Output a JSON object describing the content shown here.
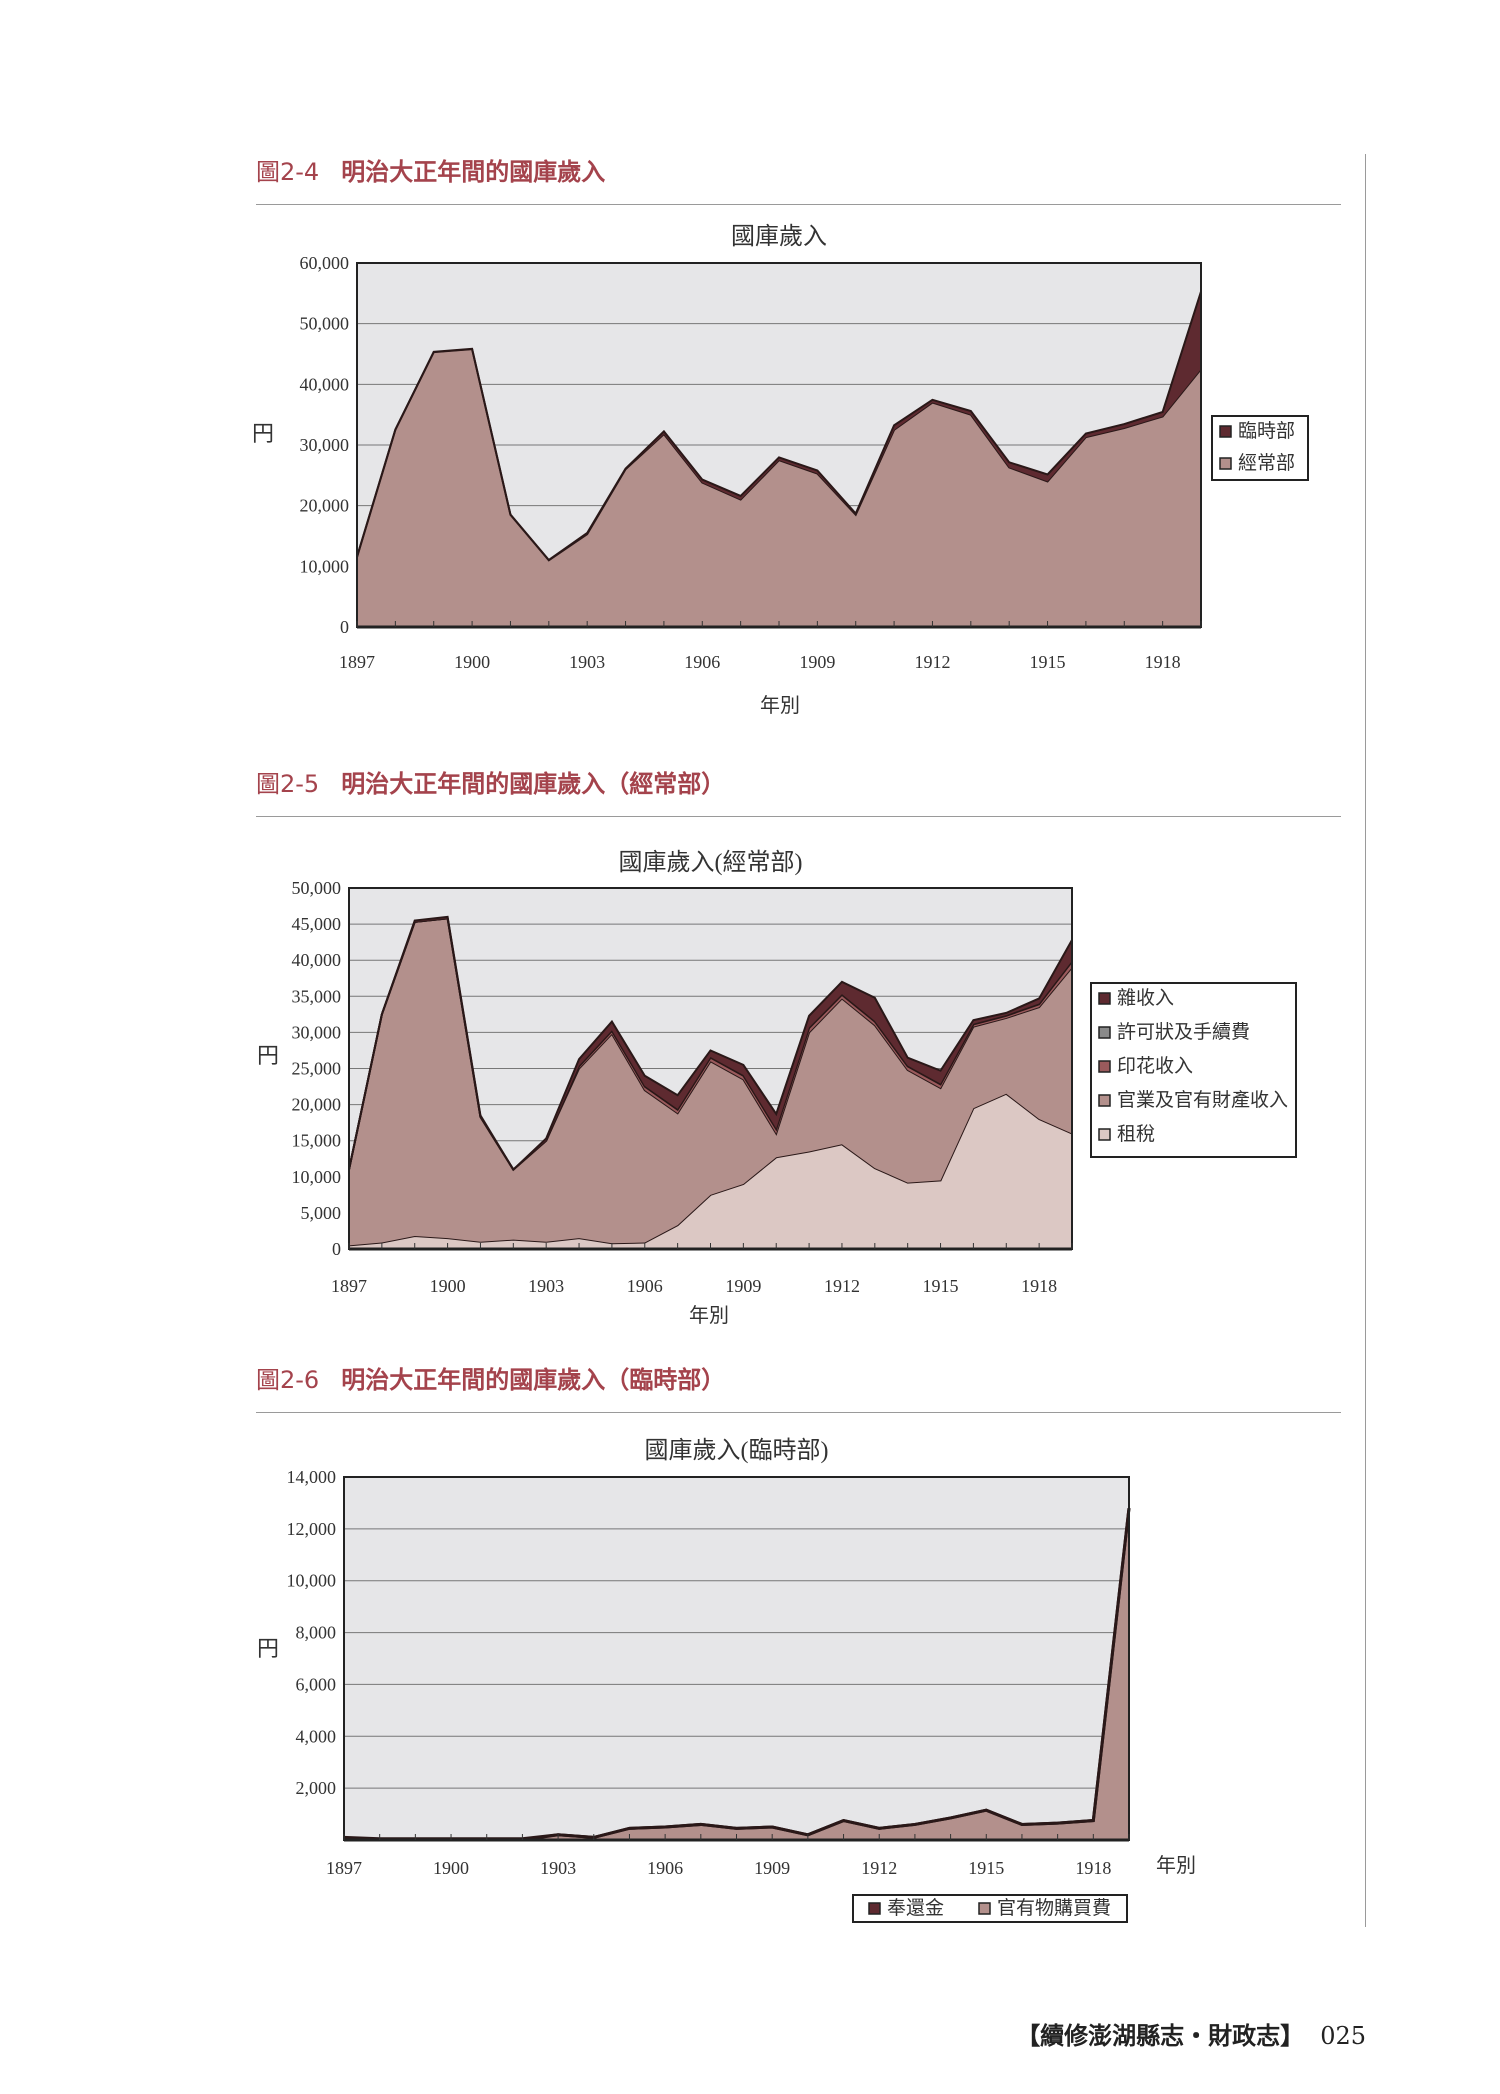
{
  "page": {
    "footer_title": "【續修澎湖縣志・財政志】",
    "page_number": "025"
  },
  "figures": [
    {
      "number": "圖2-4",
      "caption": "明治大正年間的國庫歲入"
    },
    {
      "number": "圖2-5",
      "caption": "明治大正年間的國庫歲入（經常部）"
    },
    {
      "number": "圖2-6",
      "caption": "明治大正年間的國庫歲入（臨時部）"
    }
  ],
  "colors": {
    "heading": "#a4434c",
    "plot_background": "#e6e6e8",
    "dark_maroon": "#5e2a30",
    "mauve": "#b3908c",
    "light_pink": "#dcc8c4",
    "grey": "#8a8a8a",
    "red_brown": "#9a5a5c"
  },
  "chart_data": [
    {
      "type": "area",
      "stacked": true,
      "title": "國庫歲入",
      "xlabel": "年別",
      "ylabel": "円",
      "x": [
        1897,
        1898,
        1899,
        1900,
        1901,
        1902,
        1903,
        1904,
        1905,
        1906,
        1907,
        1908,
        1909,
        1910,
        1911,
        1912,
        1913,
        1914,
        1915,
        1916,
        1917,
        1918,
        1919
      ],
      "xticks": [
        "1897",
        "1900",
        "1903",
        "1906",
        "1909",
        "1912",
        "1915",
        "1918"
      ],
      "ylim": [
        0,
        60000
      ],
      "yticks": [
        "0",
        "10,000",
        "20,000",
        "30,000",
        "40,000",
        "50,000",
        "60,000"
      ],
      "grid": true,
      "legend_placement": "right",
      "series": [
        {
          "name": "經常部",
          "color": "#b3908c",
          "values": [
            11500,
            32500,
            45300,
            45800,
            18500,
            11000,
            15300,
            26000,
            31800,
            23800,
            21000,
            27500,
            25300,
            18500,
            32500,
            37000,
            35000,
            26300,
            24000,
            31300,
            32800,
            34700,
            42500
          ]
        },
        {
          "name": "臨時部",
          "color": "#5e2a30",
          "values": [
            100,
            50,
            50,
            50,
            50,
            50,
            200,
            100,
            450,
            500,
            600,
            450,
            500,
            200,
            750,
            450,
            600,
            850,
            1150,
            600,
            650,
            750,
            12800
          ]
        }
      ],
      "legend_order": [
        "臨時部",
        "經常部"
      ]
    },
    {
      "type": "area",
      "stacked": true,
      "title": "國庫歲入(經常部)",
      "xlabel": "年別",
      "ylabel": "円",
      "x": [
        1897,
        1898,
        1899,
        1900,
        1901,
        1902,
        1903,
        1904,
        1905,
        1906,
        1907,
        1908,
        1909,
        1910,
        1911,
        1912,
        1913,
        1914,
        1915,
        1916,
        1917,
        1918,
        1919
      ],
      "xticks": [
        "1897",
        "1900",
        "1903",
        "1906",
        "1909",
        "1912",
        "1915",
        "1918"
      ],
      "ylim": [
        0,
        50000
      ],
      "yticks": [
        "0",
        "5,000",
        "10,000",
        "15,000",
        "20,000",
        "25,000",
        "30,000",
        "35,000",
        "40,000",
        "45,000",
        "50,000"
      ],
      "grid": true,
      "legend_placement": "right",
      "series": [
        {
          "name": "租稅",
          "color": "#dcc8c4",
          "values": [
            500,
            900,
            1800,
            1500,
            1000,
            1300,
            1000,
            1500,
            800,
            900,
            3300,
            7500,
            9000,
            12700,
            13500,
            14500,
            11200,
            9200,
            9500,
            19500,
            21500,
            18000,
            16000
          ]
        },
        {
          "name": "官業及官有財產收入",
          "color": "#b3908c",
          "values": [
            10500,
            31600,
            43500,
            44300,
            17300,
            9700,
            14000,
            23500,
            29000,
            21100,
            15500,
            18500,
            14500,
            3300,
            16500,
            20200,
            19800,
            15600,
            12800,
            11300,
            10500,
            15500,
            23000
          ]
        },
        {
          "name": "印花收入",
          "color": "#9a5a5c",
          "values": [
            0,
            0,
            0,
            0,
            0,
            0,
            0,
            300,
            400,
            500,
            500,
            500,
            500,
            600,
            600,
            500,
            500,
            500,
            500,
            300,
            300,
            400,
            800
          ]
        },
        {
          "name": "許可狀及手續費",
          "color": "#8a8a8a",
          "values": [
            0,
            0,
            0,
            0,
            0,
            0,
            0,
            100,
            100,
            100,
            100,
            100,
            100,
            100,
            100,
            100,
            100,
            100,
            100,
            100,
            100,
            100,
            100
          ]
        },
        {
          "name": "雜收入",
          "color": "#5e2a30",
          "values": [
            0,
            0,
            200,
            200,
            200,
            0,
            300,
            900,
            1200,
            1400,
            1900,
            900,
            1400,
            2000,
            1600,
            1700,
            3200,
            1100,
            1800,
            500,
            300,
            700,
            2900
          ]
        }
      ],
      "legend_order": [
        "雜收入",
        "許可狀及手續費",
        "印花收入",
        "官業及官有財產收入",
        "租稅"
      ]
    },
    {
      "type": "area",
      "stacked": true,
      "title": "國庫歲入(臨時部)",
      "xlabel": "年別",
      "ylabel": "円",
      "x": [
        1897,
        1898,
        1899,
        1900,
        1901,
        1902,
        1903,
        1904,
        1905,
        1906,
        1907,
        1908,
        1909,
        1910,
        1911,
        1912,
        1913,
        1914,
        1915,
        1916,
        1917,
        1918,
        1919
      ],
      "xticks": [
        "1897",
        "1900",
        "1903",
        "1906",
        "1909",
        "1912",
        "1915",
        "1918"
      ],
      "ylim": [
        0,
        14000
      ],
      "yticks": [
        "2,000",
        "4,000",
        "6,000",
        "8,000",
        "10,000",
        "12,000",
        "14,000"
      ],
      "grid": true,
      "legend_placement": "bottom",
      "series": [
        {
          "name": "官有物購買費",
          "color": "#b3908c",
          "values": [
            0,
            0,
            0,
            0,
            0,
            0,
            200,
            100,
            450,
            500,
            600,
            450,
            500,
            200,
            750,
            450,
            600,
            850,
            1150,
            600,
            650,
            750,
            12800
          ]
        },
        {
          "name": "奉還金",
          "color": "#5e2a30",
          "values": [
            100,
            50,
            50,
            50,
            50,
            50,
            0,
            0,
            0,
            0,
            0,
            0,
            0,
            0,
            0,
            0,
            0,
            0,
            0,
            0,
            0,
            0,
            0
          ]
        }
      ],
      "legend_order": [
        "奉還金",
        "官有物購買費"
      ]
    }
  ]
}
